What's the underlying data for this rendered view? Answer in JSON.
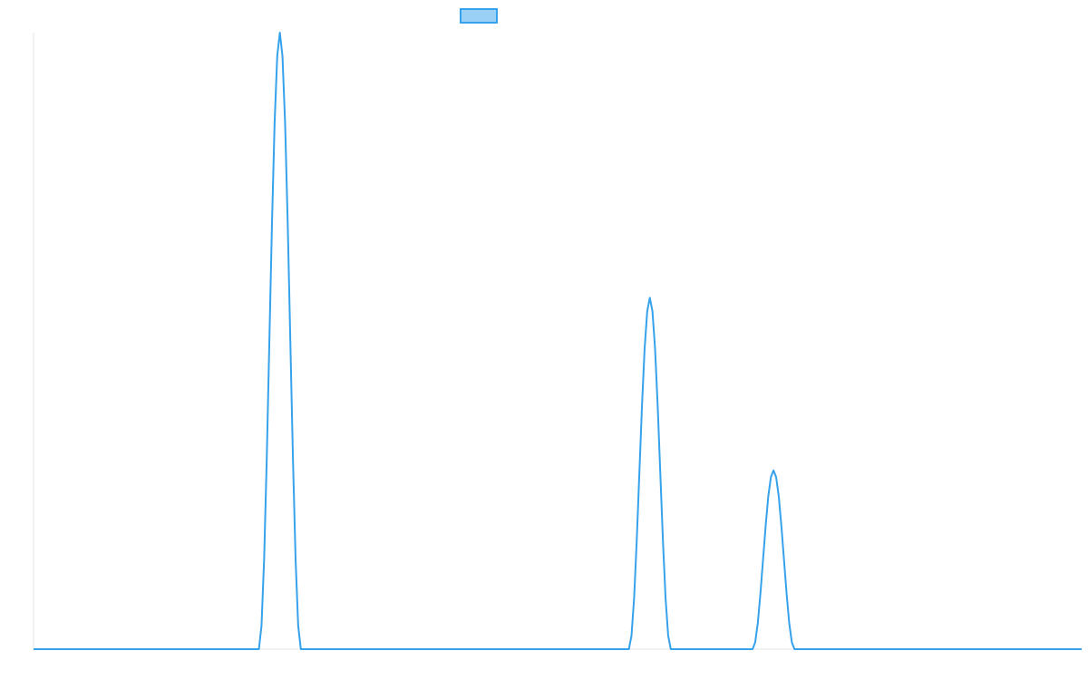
{
  "chart_data": {
    "type": "line",
    "legend": "top",
    "grid": false,
    "xlim": [
      0,
      100
    ],
    "ylim": [
      0,
      100
    ],
    "series": [
      {
        "color": "#36a2eb",
        "x": [
          0,
          21.5,
          21.75,
          22,
          22.25,
          22.5,
          22.75,
          23,
          23.25,
          23.5,
          23.75,
          24,
          24.25,
          24.5,
          24.75,
          25,
          25.25,
          25.5,
          56.8,
          57.05,
          57.3,
          57.55,
          57.8,
          58.05,
          58.3,
          58.55,
          58.8,
          59.05,
          59.3,
          59.55,
          59.8,
          60.05,
          60.3,
          60.55,
          60.8,
          68.6,
          68.85,
          69.1,
          69.35,
          69.6,
          69.85,
          70.1,
          70.35,
          70.6,
          70.85,
          71.1,
          71.35,
          71.6,
          71.85,
          72.1,
          72.35,
          72.6,
          100
        ],
        "values": [
          0,
          0,
          3.8,
          14.6,
          30.9,
          50,
          69.1,
          85.4,
          96.2,
          100,
          96.2,
          85.4,
          69.1,
          50,
          30.9,
          14.6,
          3.8,
          0,
          0,
          2.2,
          8.3,
          17.6,
          28.5,
          39.4,
          48.7,
          54.8,
          57,
          54.8,
          48.7,
          39.4,
          28.5,
          17.6,
          8.3,
          2.2,
          0,
          0,
          1.1,
          4.2,
          9,
          14.5,
          20,
          24.8,
          27.9,
          29,
          27.9,
          24.8,
          20,
          14.5,
          9,
          4.2,
          1.1,
          0,
          0
        ]
      }
    ]
  }
}
